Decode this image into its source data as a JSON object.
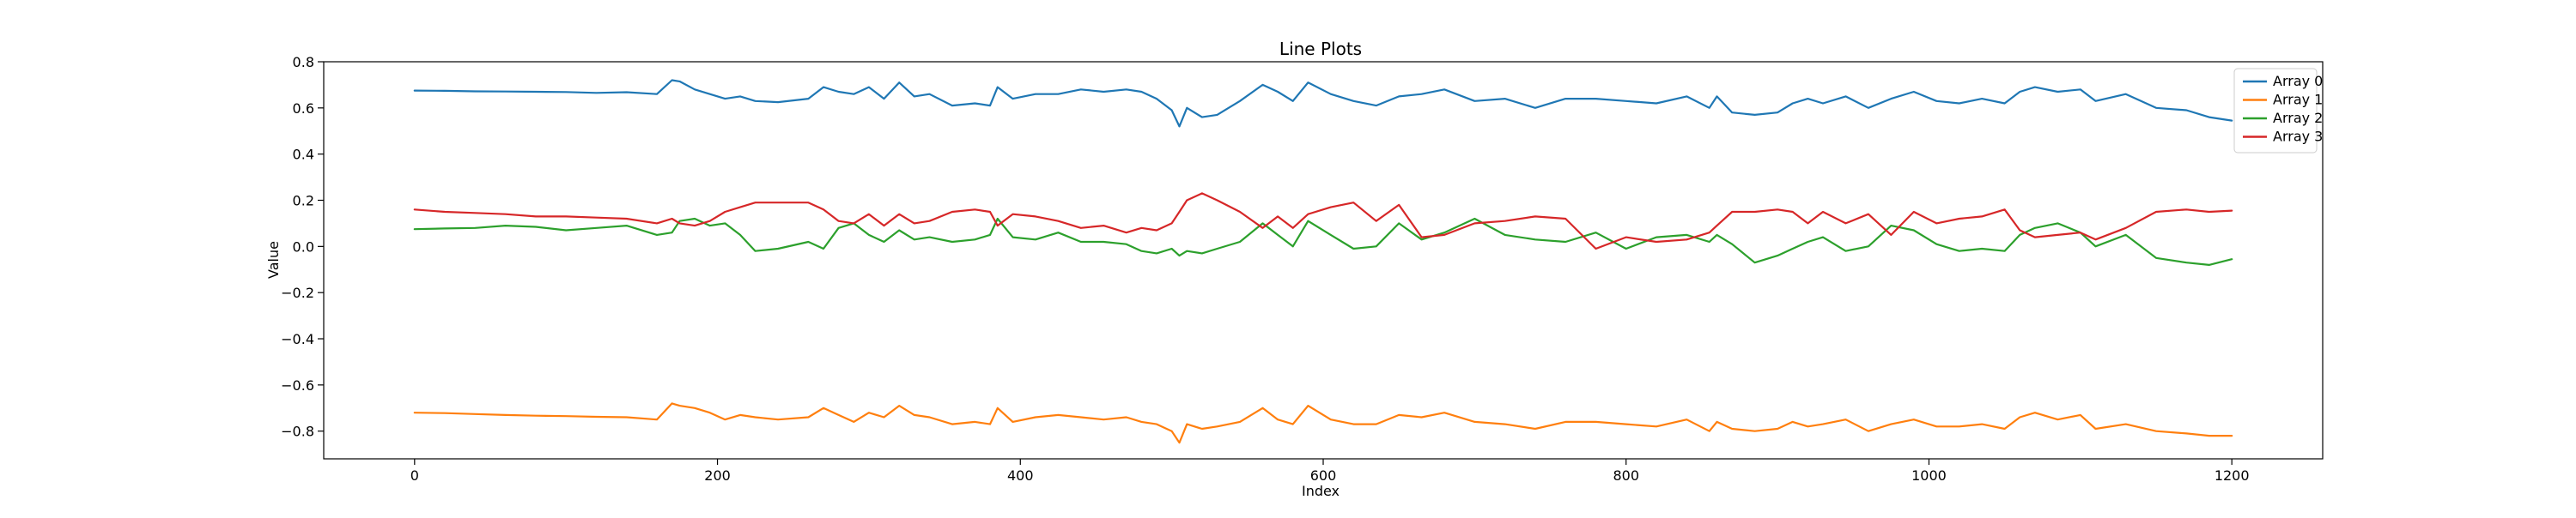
{
  "chart_data": {
    "type": "line",
    "title": "Line Plots",
    "xlabel": "Index",
    "ylabel": "Value",
    "xlim": [
      -60,
      1260
    ],
    "ylim": [
      -0.92,
      0.8
    ],
    "xticks": [
      0,
      200,
      400,
      600,
      800,
      1000,
      1200
    ],
    "yticks": [
      -0.8,
      -0.6,
      -0.4,
      -0.2,
      0.0,
      0.2,
      0.4,
      0.6,
      0.8
    ],
    "ytick_labels": [
      "−0.8",
      "−0.6",
      "−0.4",
      "−0.2",
      "0.0",
      "0.2",
      "0.4",
      "0.6",
      "0.8"
    ],
    "grid": false,
    "legend_position": "top-right",
    "x": [
      0,
      20,
      40,
      60,
      80,
      100,
      120,
      140,
      160,
      170,
      175,
      185,
      195,
      205,
      215,
      225,
      240,
      260,
      270,
      280,
      290,
      300,
      310,
      320,
      330,
      340,
      355,
      370,
      380,
      385,
      395,
      410,
      425,
      440,
      455,
      470,
      480,
      490,
      500,
      505,
      510,
      520,
      530,
      545,
      560,
      570,
      580,
      590,
      605,
      620,
      635,
      650,
      665,
      680,
      700,
      720,
      740,
      760,
      780,
      800,
      820,
      840,
      855,
      860,
      870,
      885,
      900,
      910,
      920,
      930,
      945,
      960,
      975,
      990,
      1005,
      1020,
      1035,
      1050,
      1060,
      1070,
      1085,
      1100,
      1110,
      1130,
      1150,
      1170,
      1185,
      1200
    ],
    "series": [
      {
        "name": "Array 0",
        "color": "#1f77b4",
        "values": [
          0.675,
          0.674,
          0.672,
          0.671,
          0.67,
          0.669,
          0.665,
          0.668,
          0.66,
          0.72,
          0.715,
          0.68,
          0.66,
          0.64,
          0.65,
          0.63,
          0.625,
          0.64,
          0.69,
          0.67,
          0.66,
          0.69,
          0.64,
          0.71,
          0.65,
          0.66,
          0.61,
          0.62,
          0.61,
          0.69,
          0.64,
          0.66,
          0.66,
          0.68,
          0.67,
          0.68,
          0.67,
          0.64,
          0.59,
          0.52,
          0.6,
          0.56,
          0.57,
          0.63,
          0.7,
          0.67,
          0.63,
          0.71,
          0.66,
          0.63,
          0.61,
          0.65,
          0.66,
          0.68,
          0.63,
          0.64,
          0.6,
          0.64,
          0.64,
          0.63,
          0.62,
          0.65,
          0.6,
          0.65,
          0.58,
          0.57,
          0.58,
          0.62,
          0.64,
          0.62,
          0.65,
          0.6,
          0.64,
          0.67,
          0.63,
          0.62,
          0.64,
          0.62,
          0.67,
          0.69,
          0.67,
          0.68,
          0.63,
          0.66,
          0.6,
          0.59,
          0.56,
          0.545
        ]
      },
      {
        "name": "Array 1",
        "color": "#ff7f0e",
        "values": [
          -0.72,
          -0.722,
          -0.726,
          -0.73,
          -0.733,
          -0.735,
          -0.738,
          -0.74,
          -0.75,
          -0.68,
          -0.69,
          -0.7,
          -0.72,
          -0.75,
          -0.73,
          -0.74,
          -0.75,
          -0.74,
          -0.7,
          -0.73,
          -0.76,
          -0.72,
          -0.74,
          -0.69,
          -0.73,
          -0.74,
          -0.77,
          -0.76,
          -0.77,
          -0.7,
          -0.76,
          -0.74,
          -0.73,
          -0.74,
          -0.75,
          -0.74,
          -0.76,
          -0.77,
          -0.8,
          -0.85,
          -0.77,
          -0.79,
          -0.78,
          -0.76,
          -0.7,
          -0.75,
          -0.77,
          -0.69,
          -0.75,
          -0.77,
          -0.77,
          -0.73,
          -0.74,
          -0.72,
          -0.76,
          -0.77,
          -0.79,
          -0.76,
          -0.76,
          -0.77,
          -0.78,
          -0.75,
          -0.8,
          -0.76,
          -0.79,
          -0.8,
          -0.79,
          -0.76,
          -0.78,
          -0.77,
          -0.75,
          -0.8,
          -0.77,
          -0.75,
          -0.78,
          -0.78,
          -0.77,
          -0.79,
          -0.74,
          -0.72,
          -0.75,
          -0.73,
          -0.79,
          -0.77,
          -0.8,
          -0.81,
          -0.82,
          -0.82
        ]
      },
      {
        "name": "Array 2",
        "color": "#2ca02c",
        "values": [
          0.075,
          0.078,
          0.08,
          0.09,
          0.085,
          0.07,
          0.08,
          0.09,
          0.05,
          0.06,
          0.11,
          0.12,
          0.09,
          0.1,
          0.05,
          -0.02,
          -0.01,
          0.02,
          -0.01,
          0.08,
          0.1,
          0.05,
          0.02,
          0.07,
          0.03,
          0.04,
          0.02,
          0.03,
          0.05,
          0.12,
          0.04,
          0.03,
          0.06,
          0.02,
          0.02,
          0.01,
          -0.02,
          -0.03,
          -0.01,
          -0.04,
          -0.02,
          -0.03,
          -0.01,
          0.02,
          0.1,
          0.05,
          0.0,
          0.11,
          0.05,
          -0.01,
          0.0,
          0.1,
          0.03,
          0.06,
          0.12,
          0.05,
          0.03,
          0.02,
          0.06,
          -0.01,
          0.04,
          0.05,
          0.02,
          0.05,
          0.01,
          -0.07,
          -0.04,
          -0.01,
          0.02,
          0.04,
          -0.02,
          0.0,
          0.09,
          0.07,
          0.01,
          -0.02,
          -0.01,
          -0.02,
          0.05,
          0.08,
          0.1,
          0.06,
          0.0,
          0.05,
          -0.05,
          -0.07,
          -0.08,
          -0.055
        ]
      },
      {
        "name": "Array 3",
        "color": "#d62728",
        "values": [
          0.16,
          0.15,
          0.145,
          0.14,
          0.13,
          0.13,
          0.125,
          0.12,
          0.1,
          0.12,
          0.1,
          0.09,
          0.11,
          0.15,
          0.17,
          0.19,
          0.19,
          0.19,
          0.16,
          0.11,
          0.1,
          0.14,
          0.09,
          0.14,
          0.1,
          0.11,
          0.15,
          0.16,
          0.15,
          0.09,
          0.14,
          0.13,
          0.11,
          0.08,
          0.09,
          0.06,
          0.08,
          0.07,
          0.1,
          0.15,
          0.2,
          0.23,
          0.2,
          0.15,
          0.08,
          0.13,
          0.08,
          0.14,
          0.17,
          0.19,
          0.11,
          0.18,
          0.04,
          0.05,
          0.1,
          0.11,
          0.13,
          0.12,
          -0.01,
          0.04,
          0.02,
          0.03,
          0.06,
          0.09,
          0.15,
          0.15,
          0.16,
          0.15,
          0.1,
          0.15,
          0.1,
          0.14,
          0.05,
          0.15,
          0.1,
          0.12,
          0.13,
          0.16,
          0.07,
          0.04,
          0.05,
          0.06,
          0.03,
          0.08,
          0.15,
          0.16,
          0.15,
          0.155
        ]
      }
    ]
  }
}
